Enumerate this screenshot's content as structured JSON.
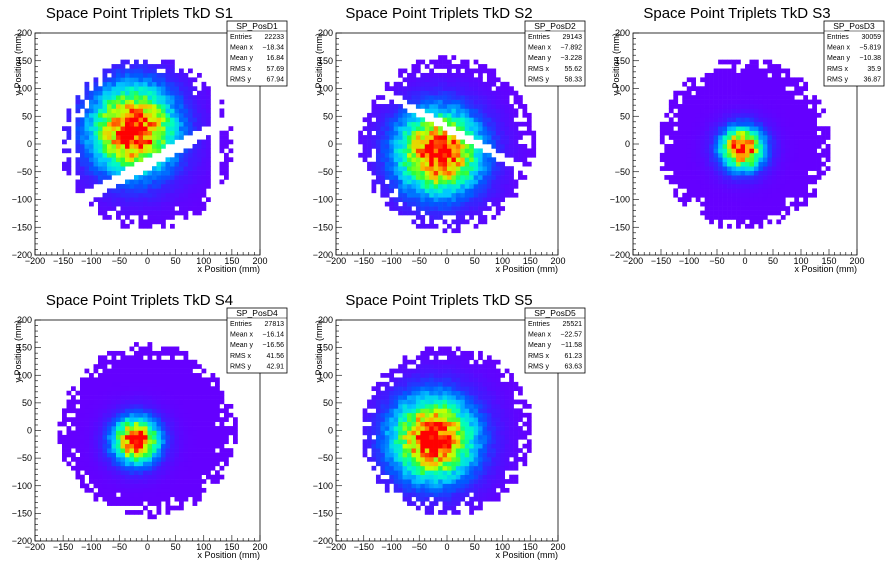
{
  "page": {
    "background": "#ffffff"
  },
  "chart_data": [
    {
      "type": "heatmap",
      "title": "Space Point Triplets TkD S1",
      "xlabel": "x Position (mm)",
      "ylabel": "y Position (mm)",
      "xlim": [
        -200,
        200
      ],
      "ylim": [
        -200,
        200
      ],
      "xticks": [
        "−200",
        "−150",
        "−100",
        "−50",
        "0",
        "50",
        "100",
        "150",
        "200"
      ],
      "yticks": [
        "−200",
        "−150",
        "−100",
        "−50",
        "0",
        "50",
        "100",
        "150",
        "200"
      ],
      "stats": {
        "name": "SP_PosD1",
        "rows": [
          [
            "Entries",
            "22233"
          ],
          [
            "Mean x",
            "−18.34"
          ],
          [
            "Mean y",
            "16.84"
          ],
          [
            "RMS x",
            "57.69"
          ],
          [
            "RMS y",
            "67.94"
          ]
        ]
      },
      "distribution": {
        "center": [
          -25,
          25
        ],
        "sigma": [
          55,
          58
        ],
        "radius": 155,
        "gap_band": {
          "offset_mm": -35,
          "width_mm": 10,
          "direction": "up-right"
        },
        "vertical_gaps_mm": [
          -130,
          120
        ]
      }
    },
    {
      "type": "heatmap",
      "title": "Space Point Triplets TkD S2",
      "xlabel": "x Position (mm)",
      "ylabel": "y Position (mm)",
      "xlim": [
        -200,
        200
      ],
      "ylim": [
        -200,
        200
      ],
      "xticks": [
        "−200",
        "−150",
        "−100",
        "−50",
        "0",
        "50",
        "100",
        "150",
        "200"
      ],
      "yticks": [
        "−200",
        "−150",
        "−100",
        "−50",
        "0",
        "50",
        "100",
        "150",
        "200"
      ],
      "stats": {
        "name": "SP_PosD2",
        "rows": [
          [
            "Entries",
            "29143"
          ],
          [
            "Mean x",
            "−7.892"
          ],
          [
            "Mean y",
            "−3.228"
          ],
          [
            "RMS x",
            "55.62"
          ],
          [
            "RMS y",
            "58.33"
          ]
        ]
      },
      "distribution": {
        "center": [
          -15,
          -15
        ],
        "sigma": [
          55,
          55
        ],
        "radius": 158,
        "gap_band": {
          "offset_mm": 30,
          "width_mm": 7,
          "direction": "down-right"
        }
      }
    },
    {
      "type": "heatmap",
      "title": "Space Point Triplets TkD S3",
      "xlabel": "x Position (mm)",
      "ylabel": "y Position (mm)",
      "xlim": [
        -200,
        200
      ],
      "ylim": [
        -200,
        200
      ],
      "xticks": [
        "−200",
        "−150",
        "−100",
        "−50",
        "0",
        "50",
        "100",
        "150",
        "200"
      ],
      "yticks": [
        "−200",
        "−150",
        "−100",
        "−50",
        "0",
        "50",
        "100",
        "150",
        "200"
      ],
      "stats": {
        "name": "SP_PosD3",
        "rows": [
          [
            "Entries",
            "30059"
          ],
          [
            "Mean x",
            "−5.819"
          ],
          [
            "Mean y",
            "−10.38"
          ],
          [
            "RMS x",
            "35.9"
          ],
          [
            "RMS y",
            "36.87"
          ]
        ]
      },
      "distribution": {
        "center": [
          -5,
          -8
        ],
        "sigma": [
          28,
          28
        ],
        "radius": 155
      }
    },
    {
      "type": "heatmap",
      "title": "Space Point Triplets TkD S4",
      "xlabel": "x Position (mm)",
      "ylabel": "y Position (mm)",
      "xlim": [
        -200,
        200
      ],
      "ylim": [
        -200,
        200
      ],
      "xticks": [
        "−200",
        "−150",
        "−100",
        "−50",
        "0",
        "50",
        "100",
        "150",
        "200"
      ],
      "yticks": [
        "−200",
        "−150",
        "−100",
        "−50",
        "0",
        "50",
        "100",
        "150",
        "200"
      ],
      "stats": {
        "name": "SP_PosD4",
        "rows": [
          [
            "Entries",
            "27813"
          ],
          [
            "Mean x",
            "−16.14"
          ],
          [
            "Mean y",
            "−16.56"
          ],
          [
            "RMS x",
            "41.56"
          ],
          [
            "RMS y",
            "42.91"
          ]
        ]
      },
      "distribution": {
        "center": [
          -20,
          -18
        ],
        "sigma": [
          30,
          30
        ],
        "radius": 158
      }
    },
    {
      "type": "heatmap",
      "title": "Space Point Triplets TkD S5",
      "xlabel": "x Position (mm)",
      "ylabel": "y Position (mm)",
      "xlim": [
        -200,
        200
      ],
      "ylim": [
        -200,
        200
      ],
      "xticks": [
        "−200",
        "−150",
        "−100",
        "−50",
        "0",
        "50",
        "100",
        "150",
        "200"
      ],
      "yticks": [
        "−200",
        "−150",
        "−100",
        "−50",
        "0",
        "50",
        "100",
        "150",
        "200"
      ],
      "stats": {
        "name": "SP_PosD5",
        "rows": [
          [
            "Entries",
            "25521"
          ],
          [
            "Mean x",
            "−22.57"
          ],
          [
            "Mean y",
            "−11.58"
          ],
          [
            "RMS x",
            "61.23"
          ],
          [
            "RMS y",
            "63.63"
          ]
        ]
      },
      "distribution": {
        "center": [
          -25,
          -15
        ],
        "sigma": [
          55,
          55
        ],
        "radius": 155
      }
    }
  ]
}
